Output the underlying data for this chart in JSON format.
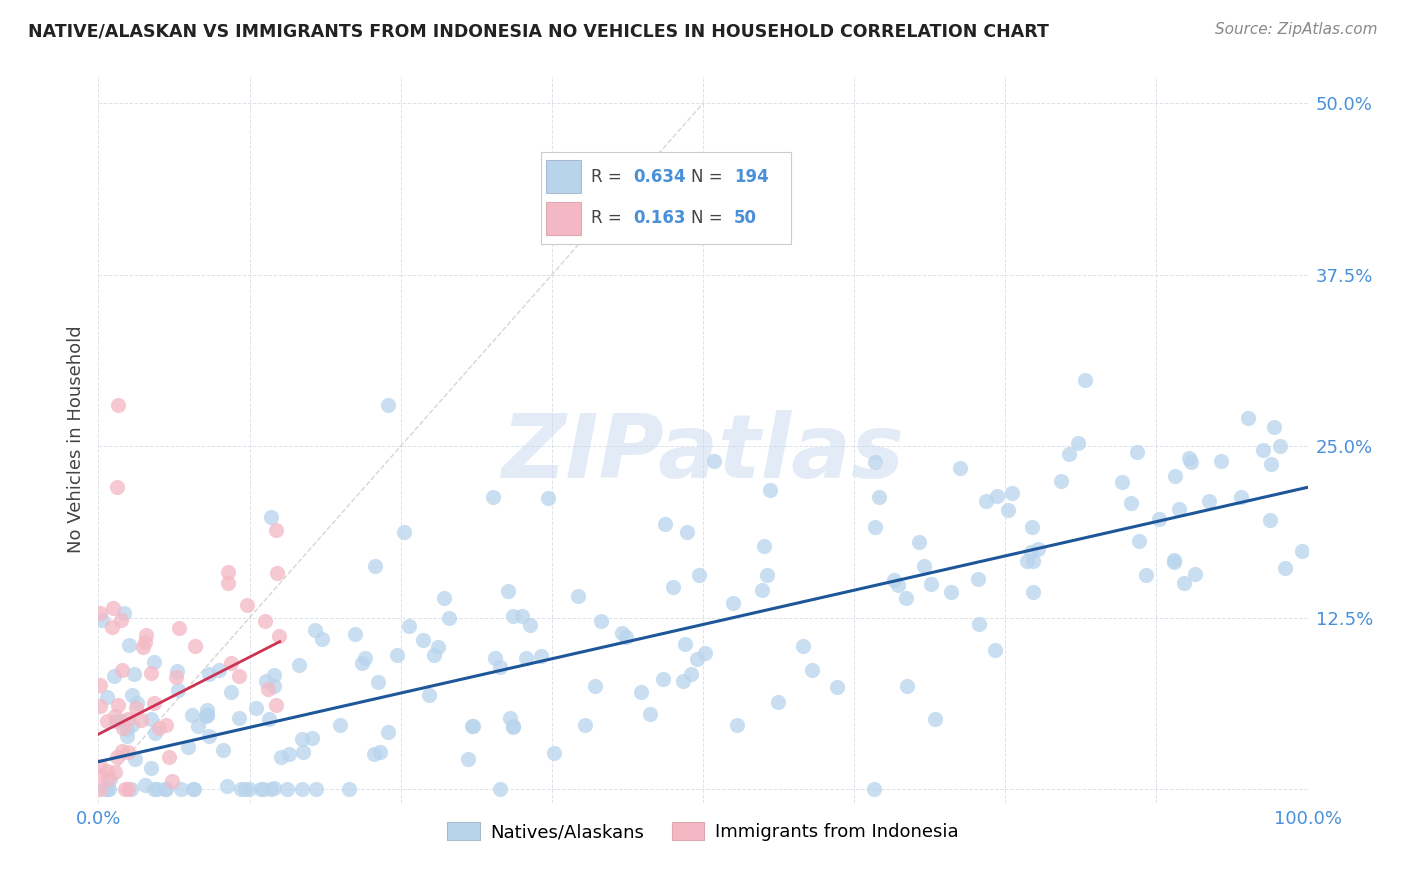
{
  "title": "NATIVE/ALASKAN VS IMMIGRANTS FROM INDONESIA NO VEHICLES IN HOUSEHOLD CORRELATION CHART",
  "source": "Source: ZipAtlas.com",
  "ylabel": "No Vehicles in Household",
  "xlim": [
    0.0,
    1.0
  ],
  "ylim": [
    -0.01,
    0.52
  ],
  "xticks": [
    0.0,
    0.125,
    0.25,
    0.375,
    0.5,
    0.625,
    0.75,
    0.875,
    1.0
  ],
  "xticklabels": [
    "0.0%",
    "",
    "",
    "",
    "",
    "",
    "",
    "",
    "100.0%"
  ],
  "ytick_positions": [
    0.0,
    0.125,
    0.25,
    0.375,
    0.5
  ],
  "yticklabels_right": [
    "",
    "12.5%",
    "25.0%",
    "37.5%",
    "50.0%"
  ],
  "blue_R": 0.634,
  "blue_N": 194,
  "pink_R": 0.163,
  "pink_N": 50,
  "blue_color": "#b8d4ec",
  "pink_color": "#f4b8c4",
  "blue_line_color": "#1e5799",
  "pink_line_color": "#cc3355",
  "diagonal_color": "#cccccc",
  "watermark": "ZIPatlas",
  "background_color": "#ffffff",
  "tick_color": "#4a90d9",
  "title_color": "#222222",
  "source_color": "#888888",
  "legend_R_color": "#4a90d9",
  "legend_N_color": "#4a90d9",
  "blue_line_intercept": 0.02,
  "blue_line_slope": 0.2,
  "pink_line_intercept": 0.04,
  "pink_line_slope": 0.45,
  "pink_line_xmax": 0.15
}
